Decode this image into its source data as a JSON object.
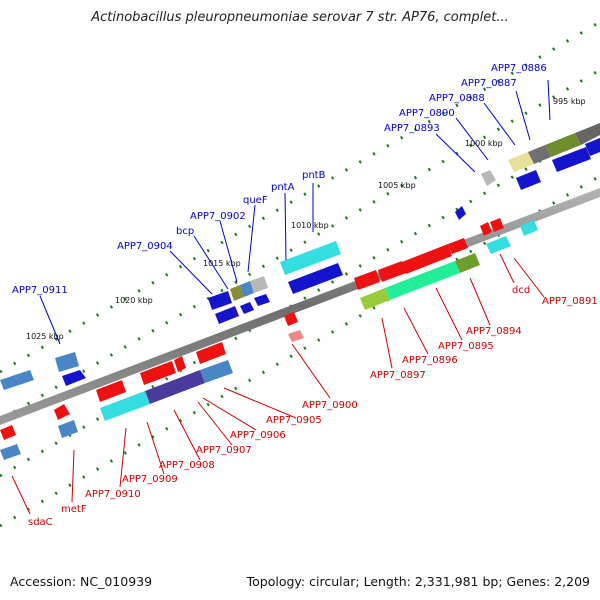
{
  "title": "Actinobacillus pleuropneumoniae serovar 7 str. AP76, complet...",
  "footer": {
    "accession": "Accession: NC_010939",
    "summary": "Topology: circular; Length: 2,331,981 bp; Genes: 2,209"
  },
  "colors": {
    "forward_label": "#0000cc",
    "reverse_label": "#cc0000",
    "backbone": "#808080",
    "tick": "#1a7a1a"
  },
  "scale_labels": [
    "995 kbp",
    "1000 kbp",
    "1005 kbp",
    "1010 kbp",
    "1015 kbp",
    "1020 kbp",
    "1025 kbp"
  ],
  "forward_labels": [
    "APP7_0886",
    "APP7_0887",
    "APP7_0888",
    "APP7_0890",
    "APP7_0893",
    "pntB",
    "pntA",
    "queF",
    "APP7_0902",
    "bcp",
    "APP7_0904",
    "APP7_0911"
  ],
  "reverse_labels": [
    "APP7_0891",
    "dcd",
    "APP7_0894",
    "APP7_0895",
    "APP7_0896",
    "APP7_0897",
    "APP7_0900",
    "APP7_0905",
    "APP7_0906",
    "APP7_0907",
    "APP7_0908",
    "APP7_0909",
    "APP7_0910",
    "metF",
    "sdaC"
  ]
}
